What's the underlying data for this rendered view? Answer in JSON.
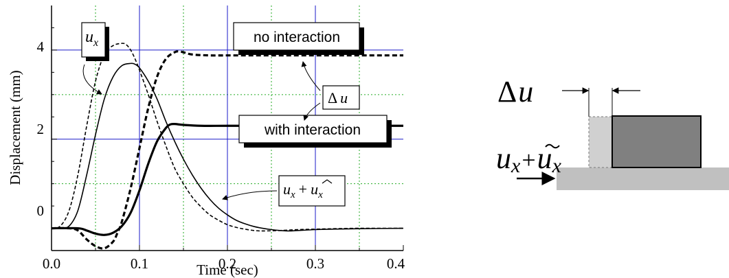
{
  "chart_data": {
    "type": "line",
    "xlabel": "Time (sec)",
    "ylabel": "Displacement (mm)",
    "xlim": [
      0.0,
      0.4
    ],
    "ylim": [
      -0.5,
      5.0
    ],
    "x_ticks": [
      "0.0",
      "0.1",
      "0.2",
      "0.3",
      "0.4"
    ],
    "y_ticks": [
      "0",
      "2",
      "4"
    ],
    "grid": {
      "major": "blue solid",
      "minor": "green dotted"
    },
    "series": [
      {
        "style": "dashed thin",
        "x": [
          0.0,
          0.01,
          0.02,
          0.03,
          0.04,
          0.05,
          0.06,
          0.07,
          0.08,
          0.085,
          0.09,
          0.095,
          0.1,
          0.11,
          0.12,
          0.13,
          0.14,
          0.15,
          0.16,
          0.17,
          0.18,
          0.19,
          0.2,
          0.21,
          0.22,
          0.23,
          0.24,
          0.26,
          0.28,
          0.3,
          0.32,
          0.35,
          0.4
        ],
        "y": [
          0.0,
          0.05,
          0.4,
          1.2,
          2.3,
          3.3,
          3.9,
          4.1,
          4.15,
          4.12,
          4.0,
          3.8,
          3.55,
          3.0,
          2.4,
          1.85,
          1.35,
          1.0,
          0.7,
          0.48,
          0.3,
          0.18,
          0.08,
          0.02,
          -0.02,
          -0.05,
          -0.06,
          -0.05,
          -0.03,
          -0.02,
          -0.01,
          0.0,
          0.0
        ]
      },
      {
        "style": "solid thin",
        "x": [
          0.0,
          0.01,
          0.02,
          0.03,
          0.04,
          0.05,
          0.06,
          0.07,
          0.08,
          0.09,
          0.095,
          0.1,
          0.11,
          0.12,
          0.13,
          0.14,
          0.15,
          0.16,
          0.17,
          0.18,
          0.19,
          0.2,
          0.21,
          0.22,
          0.23,
          0.24,
          0.25,
          0.26,
          0.27,
          0.28,
          0.3,
          0.32,
          0.35,
          0.4
        ],
        "y": [
          0.0,
          0.0,
          0.05,
          0.4,
          1.2,
          2.1,
          2.9,
          3.4,
          3.65,
          3.7,
          3.68,
          3.6,
          3.3,
          2.9,
          2.4,
          1.95,
          1.55,
          1.2,
          0.9,
          0.65,
          0.45,
          0.3,
          0.18,
          0.1,
          0.04,
          0.0,
          -0.03,
          -0.05,
          -0.06,
          -0.05,
          -0.03,
          -0.02,
          -0.01,
          0.0
        ]
      },
      {
        "style": "dashed thick",
        "x": [
          0.0,
          0.02,
          0.03,
          0.04,
          0.05,
          0.06,
          0.07,
          0.075,
          0.08,
          0.09,
          0.1,
          0.11,
          0.12,
          0.13,
          0.14,
          0.145,
          0.15,
          0.16,
          0.18,
          0.2,
          0.25,
          0.3,
          0.35,
          0.4
        ],
        "y": [
          0.0,
          0.0,
          -0.05,
          -0.25,
          -0.4,
          -0.45,
          -0.3,
          -0.1,
          0.15,
          0.9,
          1.8,
          2.7,
          3.4,
          3.8,
          3.95,
          3.97,
          3.95,
          3.9,
          3.88,
          3.88,
          3.88,
          3.88,
          3.88,
          3.88
        ]
      },
      {
        "style": "solid thick",
        "x": [
          0.0,
          0.03,
          0.04,
          0.05,
          0.06,
          0.07,
          0.08,
          0.09,
          0.1,
          0.11,
          0.12,
          0.13,
          0.135,
          0.14,
          0.15,
          0.17,
          0.2,
          0.25,
          0.3,
          0.35,
          0.4
        ],
        "y": [
          0.0,
          0.0,
          -0.05,
          -0.12,
          -0.15,
          -0.1,
          0.05,
          0.35,
          0.85,
          1.45,
          1.95,
          2.25,
          2.33,
          2.34,
          2.32,
          2.3,
          2.3,
          2.3,
          2.3,
          2.3,
          2.3
        ]
      }
    ],
    "annotations": {
      "ux": {
        "base": "u",
        "sub": "x"
      },
      "no_interaction": "no interaction",
      "with_interaction": "with interaction",
      "delta_u": {
        "symbol": "Δ",
        "var": "u"
      },
      "ux_plus": {
        "base": "u",
        "sub": "x",
        "plus": "+",
        "tilde_base": "u",
        "tilde_sub": "x"
      }
    }
  },
  "diagram": {
    "delta_u": {
      "symbol": "Δ",
      "var": "u"
    },
    "ux_plus": {
      "base": "u",
      "sub": "x",
      "plus": "+",
      "tilde_base": "u",
      "tilde_sub": "x"
    }
  },
  "colors": {
    "major_grid": "#1a1ac8",
    "minor_grid": "#22aa22",
    "block_dark": "#808080",
    "block_light": "#cccccc",
    "ground": "#c0c0c0"
  }
}
